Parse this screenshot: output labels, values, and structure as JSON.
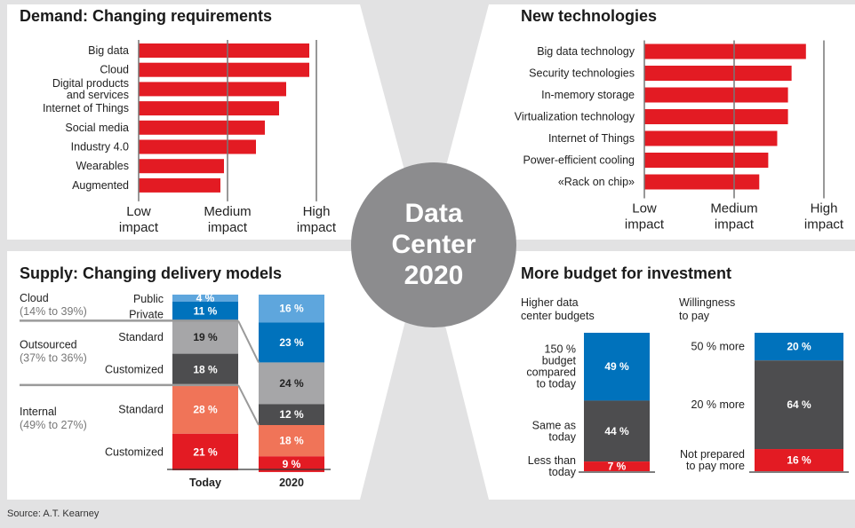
{
  "center_badge": {
    "line1": "Data",
    "line2": "Center",
    "line3": "2020"
  },
  "source": "Source: A.T. Kearney",
  "colors": {
    "red": "#e31b23",
    "blue": "#0072bc",
    "light_blue": "#5ea6dd",
    "light_grey": "#a6a6a8",
    "dark_grey": "#4d4d4f",
    "salmon": "#f07458",
    "background": "#e2e2e3",
    "badge": "#8c8c8e"
  },
  "chart_data": [
    {
      "type": "bar",
      "orientation": "horizontal",
      "title": "Demand: Changing requirements",
      "categories": [
        "Big data",
        "Cloud",
        "Digital products\nand services",
        "Internet of Things",
        "Social media",
        "Industry 4.0",
        "Wearables",
        "Augmented"
      ],
      "values": [
        0.96,
        0.96,
        0.83,
        0.79,
        0.71,
        0.66,
        0.48,
        0.46
      ],
      "x_ticks": [
        "Low\nimpact",
        "Medium\nimpact",
        "High\nimpact"
      ],
      "xlim": [
        0,
        1
      ]
    },
    {
      "type": "bar",
      "orientation": "horizontal",
      "title": "New technologies",
      "categories": [
        "Big data technology",
        "Security technologies",
        "In-memory storage",
        "Virtualization technology",
        "Internet of Things",
        "Power-efficient cooling",
        "«Rack on chip»"
      ],
      "values": [
        0.9,
        0.82,
        0.8,
        0.8,
        0.74,
        0.69,
        0.64
      ],
      "x_ticks": [
        "Low\nimpact",
        "Medium\nimpact",
        "High\nimpact"
      ],
      "xlim": [
        0,
        1
      ]
    },
    {
      "type": "bar",
      "stacked": true,
      "title": "Supply: Changing delivery models",
      "categories": [
        "Today",
        "2020"
      ],
      "series": [
        {
          "name": "Public",
          "values": [
            4,
            16
          ],
          "labels": [
            "4 %",
            "16 %"
          ]
        },
        {
          "name": "Private",
          "values": [
            11,
            23
          ],
          "labels": [
            "11 %",
            "23 %"
          ]
        },
        {
          "name": "Standard",
          "values": [
            19,
            24
          ],
          "labels": [
            "19 %",
            "24 %"
          ]
        },
        {
          "name": "Customized",
          "values": [
            18,
            12
          ],
          "labels": [
            "18 %",
            "12 %"
          ]
        },
        {
          "name": "Standard",
          "values": [
            28,
            18
          ],
          "labels": [
            "28 %",
            "18 %"
          ]
        },
        {
          "name": "Customized",
          "values": [
            21,
            9
          ],
          "labels": [
            "21 %",
            "9 %"
          ]
        }
      ],
      "groups": [
        {
          "name": "Cloud",
          "range": "(14% to 39%)"
        },
        {
          "name": "Outsourced",
          "range": "(37% to 36%)"
        },
        {
          "name": "Internal",
          "range": "(49% to 27%)"
        }
      ],
      "ylim": [
        0,
        100
      ]
    },
    {
      "type": "bar",
      "stacked": true,
      "title": "More budget for investment",
      "charts": [
        {
          "subtitle": "Higher data\ncenter budgets",
          "segments": [
            {
              "name": "150 %\nbudget\ncompared\nto today",
              "value": 49,
              "label": "49 %"
            },
            {
              "name": "Same as\ntoday",
              "value": 44,
              "label": "44 %"
            },
            {
              "name": "Less than\ntoday",
              "value": 7,
              "label": "7 %"
            }
          ]
        },
        {
          "subtitle": "Willingness\nto pay",
          "segments": [
            {
              "name": "50 % more",
              "value": 20,
              "label": "20 %"
            },
            {
              "name": "20 % more",
              "value": 64,
              "label": "64 %"
            },
            {
              "name": "Not prepared\nto pay more",
              "value": 16,
              "label": "16 %"
            }
          ]
        }
      ],
      "ylim": [
        0,
        100
      ]
    }
  ]
}
